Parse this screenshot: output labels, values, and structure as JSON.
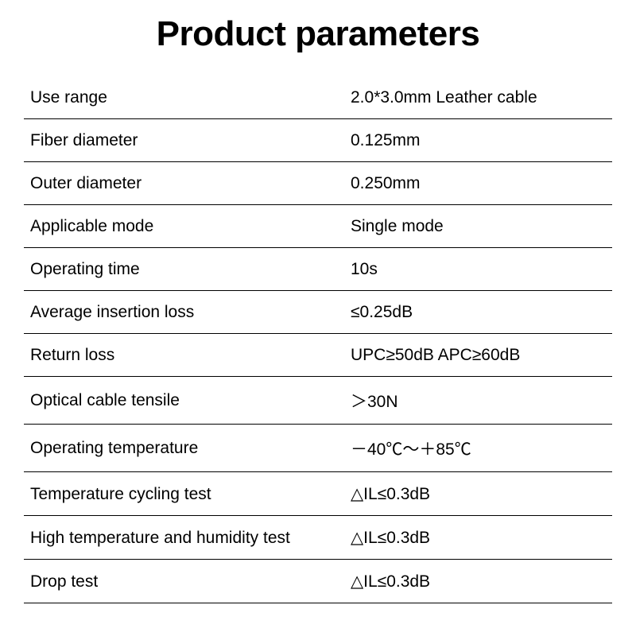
{
  "title": "Product parameters",
  "table": {
    "type": "table",
    "columns": [
      "label",
      "value"
    ],
    "border_color": "#000000",
    "text_color": "#000000",
    "background_color": "#ffffff",
    "title_fontsize": 44,
    "title_fontweight": 700,
    "cell_fontsize": 21,
    "rows": [
      {
        "label": "Use range",
        "value": "2.0*3.0mm Leather cable"
      },
      {
        "label": "Fiber diameter",
        "value": "0.125mm"
      },
      {
        "label": "Outer diameter",
        "value": "0.250mm"
      },
      {
        "label": "Applicable mode",
        "value": "Single mode"
      },
      {
        "label": "Operating time",
        "value": "10s"
      },
      {
        "label": "Average insertion loss",
        "value": "≤0.25dB"
      },
      {
        "label": "Return loss",
        "value": "UPC≥50dB APC≥60dB"
      },
      {
        "label": "Optical cable tensile",
        "value": "＞30N"
      },
      {
        "label": "Operating temperature",
        "value": "－40℃～＋85℃"
      },
      {
        "label": "Temperature cycling test",
        "value": "△IL≤0.3dB"
      },
      {
        "label": "High temperature and humidity test",
        "value": "△IL≤0.3dB"
      },
      {
        "label": "Drop test",
        "value": "△IL≤0.3dB"
      }
    ]
  }
}
